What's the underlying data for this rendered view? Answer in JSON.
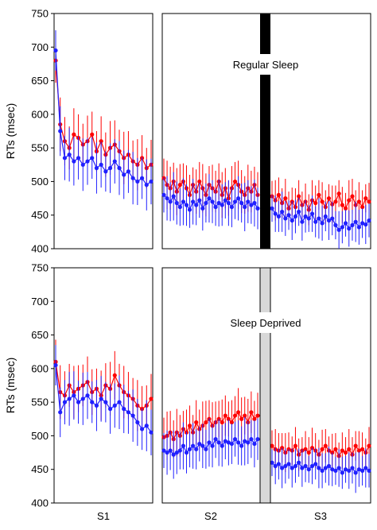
{
  "chart_data": [
    {
      "type": "line",
      "panel": "top",
      "ylabel": "RTs (msec)",
      "ylim": [
        400,
        750
      ],
      "yticks": [
        400,
        450,
        500,
        550,
        600,
        650,
        700,
        750
      ],
      "xlabel": "",
      "sessions": [
        "S1",
        "S2",
        "S3"
      ],
      "separator": "black",
      "annotation": "Regular Sleep",
      "colors": {
        "red": "#ff0000",
        "blue": "#2020ff",
        "separator": "#000000"
      },
      "series": [
        {
          "color": "red",
          "S1": [
            680,
            585,
            560,
            550,
            570,
            565,
            555,
            560,
            570,
            545,
            560,
            540,
            550,
            555,
            545,
            535,
            540,
            530,
            525,
            535,
            520,
            525
          ],
          "S2": [
            505,
            495,
            490,
            500,
            485,
            495,
            500,
            490,
            480,
            495,
            485,
            500,
            490,
            480,
            495,
            490,
            485,
            500,
            480,
            490,
            475,
            490,
            500,
            495,
            485,
            480,
            490,
            485,
            495,
            480
          ],
          "S3": [
            478,
            472,
            480,
            468,
            475,
            460,
            470,
            462,
            478,
            465,
            470,
            458,
            472,
            468,
            480,
            470,
            462,
            475,
            466,
            470,
            482,
            465,
            460,
            472,
            478,
            465,
            470,
            462,
            475,
            470
          ]
        },
        {
          "color": "blue",
          "S1": [
            695,
            575,
            535,
            540,
            530,
            535,
            525,
            530,
            535,
            520,
            525,
            515,
            520,
            530,
            520,
            510,
            515,
            505,
            500,
            505,
            495,
            500
          ],
          "S2": [
            480,
            475,
            470,
            478,
            468,
            462,
            470,
            465,
            458,
            470,
            465,
            472,
            460,
            468,
            475,
            470,
            462,
            468,
            465,
            472,
            468,
            462,
            470,
            475,
            468,
            462,
            470,
            465,
            468,
            460
          ],
          "S3": [
            460,
            452,
            448,
            455,
            445,
            450,
            442,
            448,
            455,
            440,
            448,
            445,
            452,
            440,
            445,
            438,
            448,
            442,
            445,
            435,
            428,
            432,
            438,
            430,
            435,
            440,
            432,
            438,
            436,
            442
          ]
        }
      ]
    },
    {
      "type": "line",
      "panel": "bottom",
      "ylabel": "RTs (msec)",
      "ylim": [
        400,
        750
      ],
      "yticks": [
        400,
        450,
        500,
        550,
        600,
        650,
        700,
        750
      ],
      "xlabel": "",
      "sessions": [
        "S1",
        "S2",
        "S3"
      ],
      "separator": "gray",
      "annotation": "Sleep Deprived",
      "colors": {
        "red": "#ff0000",
        "blue": "#2020ff",
        "separator": "#d8d8d8"
      },
      "series": [
        {
          "color": "red",
          "S1": [
            610,
            565,
            560,
            575,
            565,
            570,
            575,
            580,
            565,
            570,
            560,
            575,
            570,
            590,
            575,
            565,
            560,
            555,
            545,
            540,
            545,
            555
          ],
          "S2": [
            498,
            500,
            505,
            495,
            505,
            500,
            510,
            505,
            515,
            505,
            520,
            510,
            515,
            520,
            525,
            515,
            520,
            525,
            520,
            530,
            525,
            520,
            530,
            535,
            525,
            530,
            520,
            535,
            525,
            530
          ],
          "S3": [
            485,
            480,
            478,
            482,
            475,
            480,
            478,
            485,
            472,
            478,
            480,
            475,
            482,
            478,
            472,
            480,
            485,
            478,
            475,
            480,
            470,
            478,
            475,
            480,
            472,
            485,
            478,
            480,
            475,
            485
          ]
        },
        {
          "color": "blue",
          "S1": [
            605,
            535,
            550,
            555,
            560,
            550,
            555,
            560,
            550,
            545,
            555,
            550,
            540,
            545,
            550,
            540,
            535,
            530,
            520,
            510,
            515,
            505
          ],
          "S2": [
            478,
            475,
            478,
            472,
            475,
            478,
            485,
            475,
            480,
            485,
            480,
            488,
            485,
            480,
            490,
            485,
            495,
            490,
            485,
            492,
            490,
            488,
            495,
            490,
            485,
            492,
            490,
            495,
            488,
            495
          ],
          "S3": [
            460,
            455,
            458,
            452,
            455,
            458,
            452,
            455,
            460,
            452,
            455,
            450,
            455,
            458,
            452,
            448,
            452,
            455,
            450,
            448,
            452,
            445,
            450,
            448,
            452,
            445,
            450,
            448,
            452,
            448
          ]
        }
      ]
    }
  ]
}
